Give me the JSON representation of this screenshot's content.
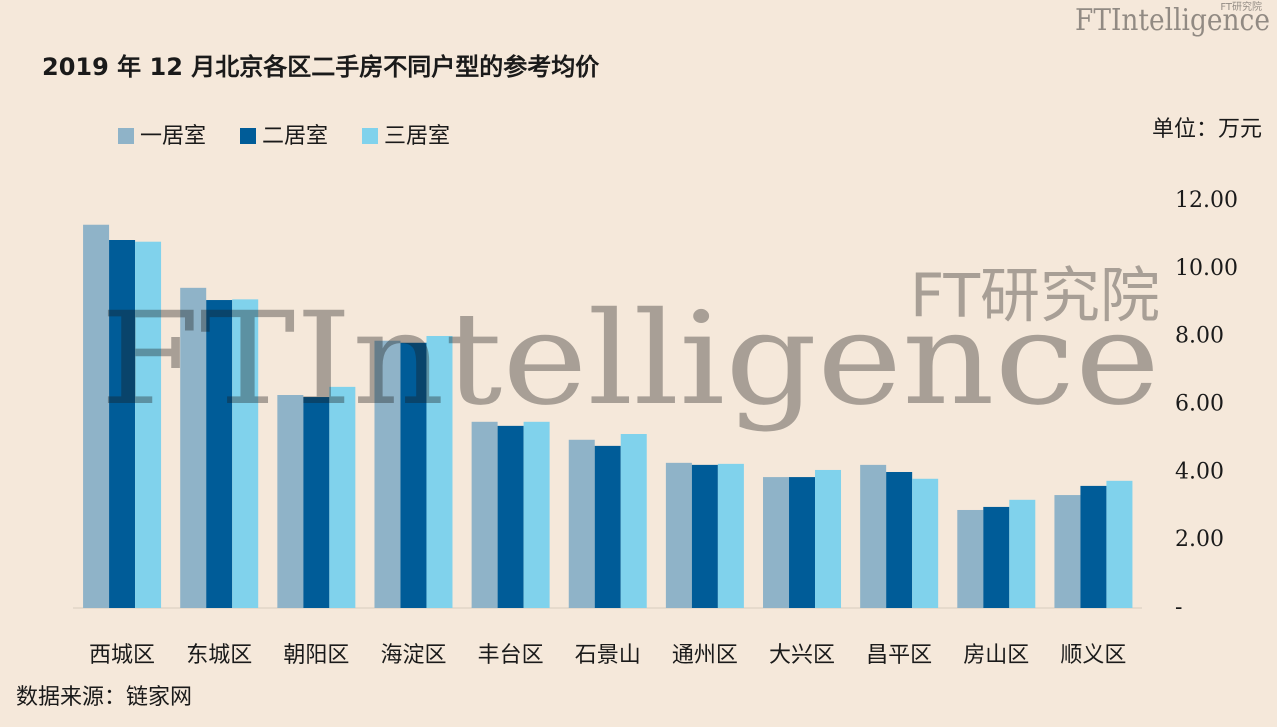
{
  "chart_data": {
    "type": "bar",
    "title": "2019 年 12 月北京各区二手房不同户型的参考均价",
    "unit_label": "单位：万元",
    "source": "数据来源：链家网",
    "watermark": {
      "brand": "FTIntelligence",
      "brand_cn": "FT研究院"
    },
    "categories": [
      "西城区",
      "东城区",
      "朝阳区",
      "海淀区",
      "丰台区",
      "石景山",
      "通州区",
      "大兴区",
      "昌平区",
      "房山区",
      "顺义区"
    ],
    "series": [
      {
        "name": "一居室",
        "color": "#8fb3c8",
        "values": [
          11.3,
          9.44,
          6.28,
          7.88,
          5.49,
          4.96,
          4.28,
          3.86,
          4.22,
          2.89,
          3.33
        ]
      },
      {
        "name": "二居室",
        "color": "#005c98",
        "values": [
          10.85,
          9.08,
          6.22,
          7.82,
          5.37,
          4.78,
          4.22,
          3.86,
          4.01,
          2.98,
          3.6
        ]
      },
      {
        "name": "三居室",
        "color": "#80d2ec",
        "values": [
          10.8,
          9.1,
          6.52,
          8.02,
          5.49,
          5.13,
          4.25,
          4.07,
          3.81,
          3.19,
          3.75
        ]
      }
    ],
    "ylim": [
      0,
      12
    ],
    "yticks": [
      {
        "value": 0,
        "label": "-"
      },
      {
        "value": 2,
        "label": "2.00"
      },
      {
        "value": 4,
        "label": "4.00"
      },
      {
        "value": 6,
        "label": "6.00"
      },
      {
        "value": 8,
        "label": "8.00"
      },
      {
        "value": 10,
        "label": "10.00"
      },
      {
        "value": 12,
        "label": "12.00"
      }
    ],
    "grid": false
  }
}
